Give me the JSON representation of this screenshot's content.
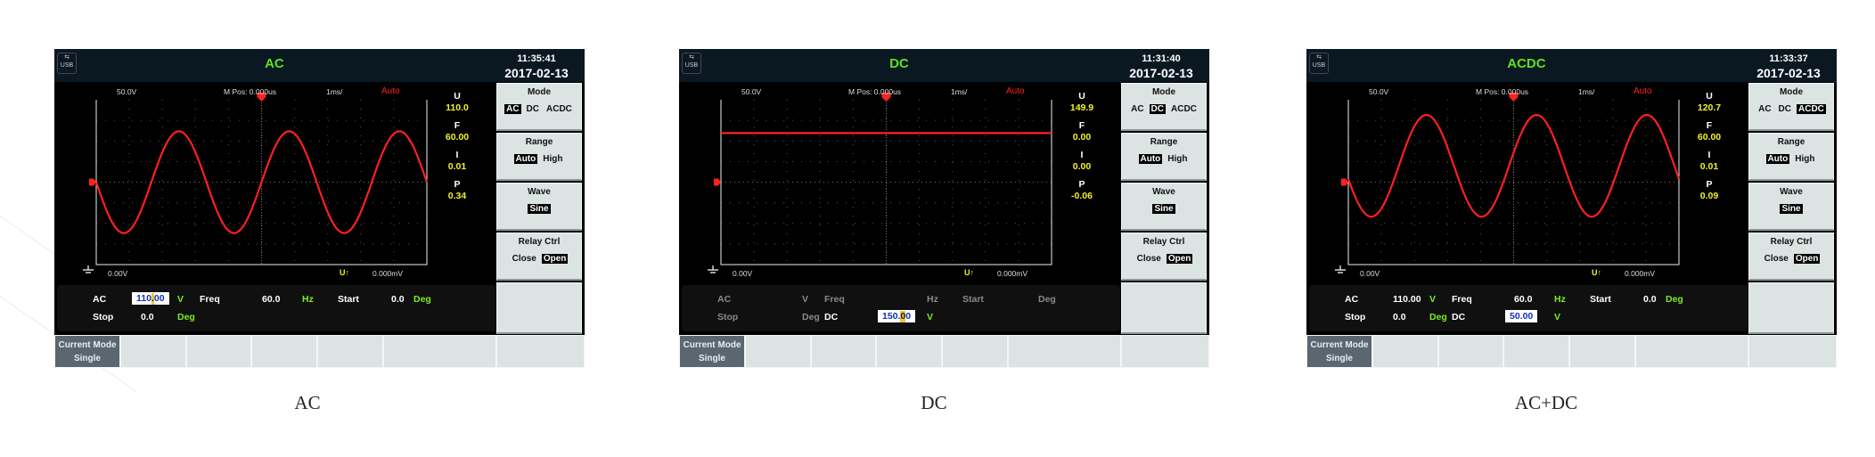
{
  "colors": {
    "title": "#5ee01e",
    "trace": "#ff2020",
    "readout": "#f2f22a",
    "unit": "#7aec22",
    "header": "#0a1822",
    "sidebar": "#dce3e3"
  },
  "screens": [
    {
      "caption": "AC",
      "header": {
        "usb_icon": "usb-icon",
        "usb_label": "USB",
        "title": "AC",
        "time": "11:35:41",
        "date": "2017-02-13"
      },
      "scope": {
        "volts_div": "50.0V",
        "mpos": "M Pos: 0.000us",
        "time_div": "1ms/",
        "trigger_mode": "Auto",
        "ground_level": "0.00V",
        "trigger_source": "U↑",
        "trigger_level": "0.000mV"
      },
      "waveform": {
        "type": "sine",
        "amplitude_v": 155.6,
        "offset_v": 0,
        "cycles_visible": 3,
        "phase_deg": 0,
        "vertical_range_v": [
          -252,
          252
        ]
      },
      "readouts": [
        {
          "label": "U",
          "value": "110.0"
        },
        {
          "label": "F",
          "value": "60.00"
        },
        {
          "label": "I",
          "value": "0.01"
        },
        {
          "label": "P",
          "value": "0.34"
        }
      ],
      "params": [
        [
          {
            "col": 0,
            "text": "AC",
            "kind": "label"
          },
          {
            "col": 1,
            "text": "110.00",
            "kind": "input",
            "cursor": 3
          },
          {
            "col": 2,
            "text": "V",
            "kind": "unit"
          },
          {
            "col": 3,
            "text": "Freq",
            "kind": "label"
          },
          {
            "col": 4,
            "text": "60.0",
            "kind": "value"
          },
          {
            "col": 5,
            "text": "Hz",
            "kind": "unit"
          },
          {
            "col": 6,
            "text": "Start",
            "kind": "label"
          },
          {
            "col": 7,
            "text": "0.0",
            "kind": "value"
          },
          {
            "col": 8,
            "text": "Deg",
            "kind": "unit"
          }
        ],
        [
          {
            "col": 0,
            "text": "Stop",
            "kind": "label"
          },
          {
            "col": 1,
            "text": "0.0",
            "kind": "value"
          },
          {
            "col": 2,
            "text": "Deg",
            "kind": "unit"
          }
        ]
      ],
      "menu": [
        {
          "title": "Mode",
          "options": [
            "AC",
            "DC",
            "ACDC"
          ],
          "selected": "AC"
        },
        {
          "title": "Range",
          "options": [
            "Auto",
            "High"
          ],
          "selected": "Auto"
        },
        {
          "title": "Wave",
          "options": [
            "Sine"
          ],
          "selected": "Sine"
        },
        {
          "title": "Relay Ctrl",
          "options": [
            "Close",
            "Open"
          ],
          "selected": "Open"
        }
      ],
      "current_mode": {
        "label": "Current Mode",
        "value": "Single"
      }
    },
    {
      "caption": "DC",
      "header": {
        "usb_icon": "usb-icon",
        "usb_label": "USB",
        "title": "DC",
        "time": "11:31:40",
        "date": "2017-02-13"
      },
      "scope": {
        "volts_div": "50.0V",
        "mpos": "M Pos: 0.000us",
        "time_div": "1ms/",
        "trigger_mode": "Auto",
        "ground_level": "0.00V",
        "trigger_source": "U↑",
        "trigger_level": "0.000mV"
      },
      "waveform": {
        "type": "dc",
        "amplitude_v": 0,
        "offset_v": 150,
        "cycles_visible": 0,
        "phase_deg": 0,
        "vertical_range_v": [
          -252,
          252
        ]
      },
      "readouts": [
        {
          "label": "U",
          "value": "149.9"
        },
        {
          "label": "F",
          "value": "0.00"
        },
        {
          "label": "I",
          "value": "0.00"
        },
        {
          "label": "P",
          "value": "-0.06"
        }
      ],
      "params": [
        [
          {
            "col": 0,
            "text": "AC",
            "kind": "label",
            "dim": true
          },
          {
            "col": 2,
            "text": "V",
            "kind": "unit",
            "dim": true
          },
          {
            "col": 3,
            "text": "Freq",
            "kind": "label",
            "dim": true
          },
          {
            "col": 5,
            "text": "Hz",
            "kind": "unit",
            "dim": true
          },
          {
            "col": 6,
            "text": "Start",
            "kind": "label",
            "dim": true
          },
          {
            "col": 8,
            "text": "Deg",
            "kind": "unit",
            "dim": true
          }
        ],
        [
          {
            "col": 0,
            "text": "Stop",
            "kind": "label",
            "dim": true
          },
          {
            "col": 2,
            "text": "Deg",
            "kind": "unit",
            "dim": true
          },
          {
            "col": 3,
            "text": "DC",
            "kind": "label"
          },
          {
            "col": 4,
            "text": "150.00",
            "kind": "input",
            "cursor": 4
          },
          {
            "col": 5,
            "text": "V",
            "kind": "unit"
          }
        ]
      ],
      "menu": [
        {
          "title": "Mode",
          "options": [
            "AC",
            "DC",
            "ACDC"
          ],
          "selected": "DC"
        },
        {
          "title": "Range",
          "options": [
            "Auto",
            "High"
          ],
          "selected": "Auto"
        },
        {
          "title": "Wave",
          "options": [
            "Sine"
          ],
          "selected": "Sine"
        },
        {
          "title": "Relay Ctrl",
          "options": [
            "Close",
            "Open"
          ],
          "selected": "Open"
        }
      ],
      "current_mode": {
        "label": "Current Mode",
        "value": "Single"
      }
    },
    {
      "caption": "AC+DC",
      "header": {
        "usb_icon": "usb-icon",
        "usb_label": "USB",
        "title": "ACDC",
        "time": "11:33:37",
        "date": "2017-02-13"
      },
      "scope": {
        "volts_div": "50.0V",
        "mpos": "M Pos: 0.000us",
        "time_div": "1ms/",
        "trigger_mode": "Auto",
        "ground_level": "0.00V",
        "trigger_source": "U↑",
        "trigger_level": "0.000mV"
      },
      "waveform": {
        "type": "sine",
        "amplitude_v": 155.6,
        "offset_v": 50,
        "cycles_visible": 3,
        "phase_deg": 15,
        "vertical_range_v": [
          -252,
          252
        ]
      },
      "readouts": [
        {
          "label": "U",
          "value": "120.7"
        },
        {
          "label": "F",
          "value": "60.00"
        },
        {
          "label": "I",
          "value": "0.01"
        },
        {
          "label": "P",
          "value": "0.09"
        }
      ],
      "params": [
        [
          {
            "col": 0,
            "text": "AC",
            "kind": "label"
          },
          {
            "col": 1,
            "text": "110.00",
            "kind": "value"
          },
          {
            "col": 2,
            "text": "V",
            "kind": "unit"
          },
          {
            "col": 3,
            "text": "Freq",
            "kind": "label"
          },
          {
            "col": 4,
            "text": "60.0",
            "kind": "value"
          },
          {
            "col": 5,
            "text": "Hz",
            "kind": "unit"
          },
          {
            "col": 6,
            "text": "Start",
            "kind": "label"
          },
          {
            "col": 7,
            "text": "0.0",
            "kind": "value"
          },
          {
            "col": 8,
            "text": "Deg",
            "kind": "unit"
          }
        ],
        [
          {
            "col": 0,
            "text": "Stop",
            "kind": "label"
          },
          {
            "col": 1,
            "text": "0.0",
            "kind": "value"
          },
          {
            "col": 2,
            "text": "Deg",
            "kind": "unit"
          },
          {
            "col": 3,
            "text": "DC",
            "kind": "label"
          },
          {
            "col": 4,
            "text": "50.00",
            "kind": "input"
          },
          {
            "col": 5,
            "text": "V",
            "kind": "unit"
          }
        ]
      ],
      "menu": [
        {
          "title": "Mode",
          "options": [
            "AC",
            "DC",
            "ACDC"
          ],
          "selected": "ACDC"
        },
        {
          "title": "Range",
          "options": [
            "Auto",
            "High"
          ],
          "selected": "Auto"
        },
        {
          "title": "Wave",
          "options": [
            "Sine"
          ],
          "selected": "Sine"
        },
        {
          "title": "Relay Ctrl",
          "options": [
            "Close",
            "Open"
          ],
          "selected": "Open"
        }
      ],
      "current_mode": {
        "label": "Current Mode",
        "value": "Single"
      }
    }
  ]
}
